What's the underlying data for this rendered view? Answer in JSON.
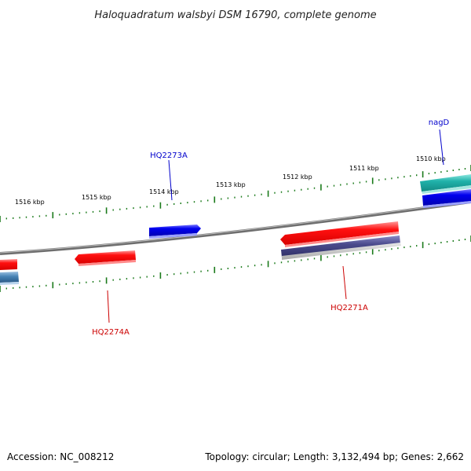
{
  "title": "Haloquadratum walsbyi DSM 16790, complete genome",
  "ticks": [
    {
      "label": "1516 kbp"
    },
    {
      "label": "1515 kbp"
    },
    {
      "label": "1514 kbp"
    },
    {
      "label": "1513 kbp"
    },
    {
      "label": "1512 kbp"
    },
    {
      "label": "1511 kbp"
    },
    {
      "label": "1510 kbp"
    }
  ],
  "genes": {
    "nagD": {
      "label": "nagD"
    },
    "hq2273a": {
      "label": "HQ2273A"
    },
    "hq2274a": {
      "label": "HQ2274A"
    },
    "hq2271a": {
      "label": "HQ2271A"
    }
  },
  "footer": {
    "accession": "Accession: NC_008212",
    "summary": "Topology: circular; Length: 3,132,494 bp; Genes: 2,662"
  },
  "colors": {
    "backbone": "#808080",
    "forward_cds": "#0000ee",
    "reverse_cds": "#ee0000",
    "tick": "#1a7a1a",
    "label_forward": "#0000cc",
    "label_reverse": "#cc0000",
    "rna": "#20b2aa",
    "orf_purple": "#4b4b8c",
    "steel": "#4682b4"
  }
}
